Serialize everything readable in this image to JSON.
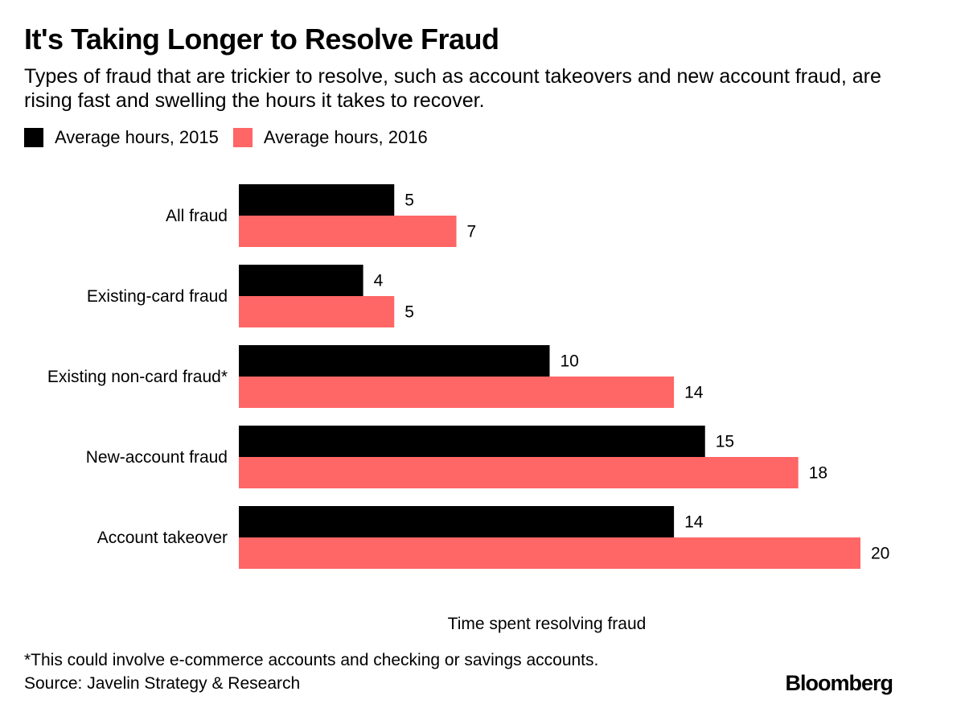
{
  "header": {
    "title": "It's Taking Longer to Resolve Fraud",
    "subtitle": "Types of fraud that are trickier to resolve, such as account takeovers and new account fraud, are rising fast and swelling the hours it takes to recover."
  },
  "legend": {
    "items": [
      {
        "label": "Average hours, 2015",
        "color": "#000000"
      },
      {
        "label": "Average hours, 2016",
        "color": "#ff6666"
      }
    ]
  },
  "chart_data": {
    "type": "bar",
    "orientation": "horizontal",
    "categories": [
      "All fraud",
      "Existing-card fraud",
      "Existing non-card fraud*",
      "New-account fraud",
      "Account takeover"
    ],
    "series": [
      {
        "name": "Average hours, 2015",
        "color": "#000000",
        "values": [
          5,
          4,
          10,
          15,
          14
        ]
      },
      {
        "name": "Average hours, 2016",
        "color": "#ff6666",
        "values": [
          7,
          5,
          14,
          18,
          20
        ]
      }
    ],
    "xlabel": "Time spent resolving fraud",
    "xlim": [
      0,
      20
    ],
    "grid": false,
    "legend_position": "top-left"
  },
  "footer": {
    "footnote": "*This could involve e-commerce accounts and checking or savings accounts.",
    "source": "Source: Javelin Strategy & Research",
    "brand": "Bloomberg"
  }
}
